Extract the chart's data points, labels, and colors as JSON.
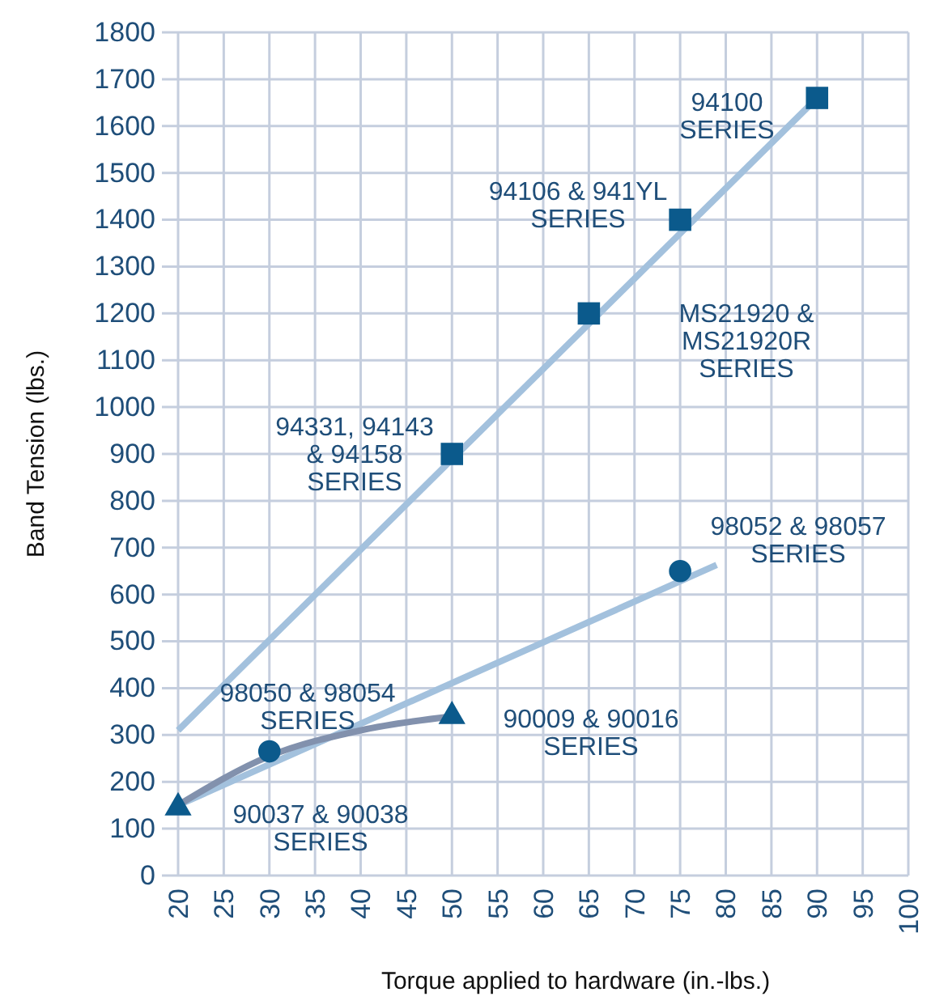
{
  "chart_data": {
    "type": "scatter",
    "xlabel": "Torque applied to hardware (in.-lbs.)",
    "ylabel": "Band Tension (lbs.)",
    "xlim": [
      20,
      100
    ],
    "xticks": [
      20,
      25,
      30,
      35,
      40,
      45,
      50,
      55,
      60,
      65,
      70,
      75,
      80,
      85,
      90,
      95,
      100
    ],
    "ylim": [
      0,
      1800
    ],
    "yticks": [
      0,
      100,
      200,
      300,
      400,
      500,
      600,
      700,
      800,
      900,
      1000,
      1100,
      1200,
      1300,
      1400,
      1500,
      1600,
      1700,
      1800
    ],
    "grid": true,
    "series": [
      {
        "type": "line",
        "x": [
          20,
          90
        ],
        "values": [
          310,
          1660
        ],
        "color": "#a3c1dd",
        "line_style": "solid"
      },
      {
        "type": "line",
        "x": [
          20,
          79
        ],
        "values": [
          150,
          663
        ],
        "color": "#a3c1dd",
        "line_style": "solid"
      },
      {
        "type": "line",
        "x": [
          20,
          30,
          40,
          50
        ],
        "values": [
          150,
          255,
          310,
          340
        ],
        "color": "#8291ad",
        "line_style": "solid"
      },
      {
        "marker": "square",
        "x": [
          50,
          65,
          75,
          90
        ],
        "values": [
          900,
          1200,
          1400,
          1660
        ],
        "color": "#0b5a8c"
      },
      {
        "marker": "circle",
        "x": [
          30,
          75
        ],
        "values": [
          265,
          650
        ],
        "color": "#0b5a8c"
      },
      {
        "marker": "triangle",
        "x": [
          20,
          50
        ],
        "values": [
          145,
          340
        ],
        "color": "#0b5a8c"
      }
    ],
    "annotations": [
      "94100\nSERIES",
      "94106 & 941YL\nSERIES",
      "MS21920 &\nMS21920R\nSERIES",
      "94331, 94143\n& 94158\nSERIES",
      "98052 & 98057\nSERIES",
      "98050 & 98054\nSERIES",
      "90009 & 90016\nSERIES",
      "90037 & 90038\nSERIES"
    ]
  }
}
